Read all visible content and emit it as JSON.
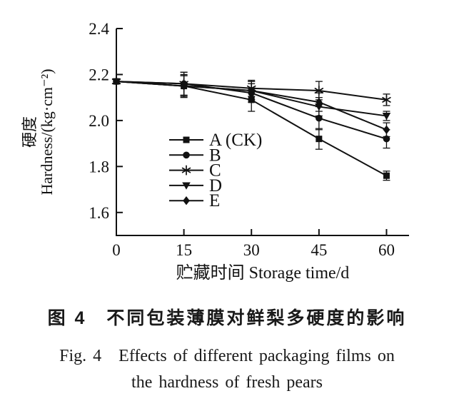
{
  "figure": {
    "caption_zh": "图 4　不同包装薄膜对鲜梨多硬度的影响",
    "caption_en_line1": "Fig. 4　Effects of different packaging films on",
    "caption_en_line2": "the hardness of fresh pears"
  },
  "chart_data": {
    "type": "line",
    "title": "",
    "xlabel": "贮藏时间 Storage time/d",
    "ylabel_lines": [
      "硬度",
      "Hardness/(kg·cm⁻²)"
    ],
    "x": [
      0,
      15,
      30,
      45,
      60
    ],
    "xticks": [
      "0",
      "15",
      "30",
      "45",
      "60"
    ],
    "yticks": [
      {
        "v": 1.6,
        "label": "1.6"
      },
      {
        "v": 1.8,
        "label": "1.8"
      },
      {
        "v": 2.0,
        "label": "2.0"
      },
      {
        "v": 2.2,
        "label": "2.2"
      },
      {
        "v": 2.4,
        "label": "2.4"
      }
    ],
    "xlim": [
      0,
      65
    ],
    "ylim": [
      1.5,
      2.4
    ],
    "grid": false,
    "legend_position": "inside-lower-left",
    "line_color": "#111111",
    "series": [
      {
        "name": "A (CK)",
        "marker": "square",
        "values": [
          2.17,
          2.15,
          2.09,
          1.92,
          1.76
        ],
        "errors": [
          0.01,
          0.05,
          0.05,
          0.045,
          0.02
        ]
      },
      {
        "name": "B",
        "marker": "circle",
        "values": [
          2.17,
          2.16,
          2.12,
          2.01,
          1.92
        ],
        "errors": [
          0.01,
          0.05,
          0.04,
          0.05,
          0.04
        ]
      },
      {
        "name": "C",
        "marker": "asterisk",
        "values": [
          2.17,
          2.16,
          2.14,
          2.13,
          2.09
        ],
        "errors": [
          0.01,
          0.05,
          0.035,
          0.04,
          0.025
        ]
      },
      {
        "name": "D",
        "marker": "triangle-down",
        "values": [
          2.17,
          2.15,
          2.13,
          2.06,
          2.02
        ],
        "errors": [
          0.01,
          0.045,
          0.04,
          0.04,
          0.02
        ]
      },
      {
        "name": "E",
        "marker": "diamond",
        "values": [
          2.17,
          2.15,
          2.13,
          2.08,
          1.96
        ],
        "errors": [
          0.01,
          0.045,
          0.04,
          0.04,
          0.03
        ]
      }
    ]
  }
}
